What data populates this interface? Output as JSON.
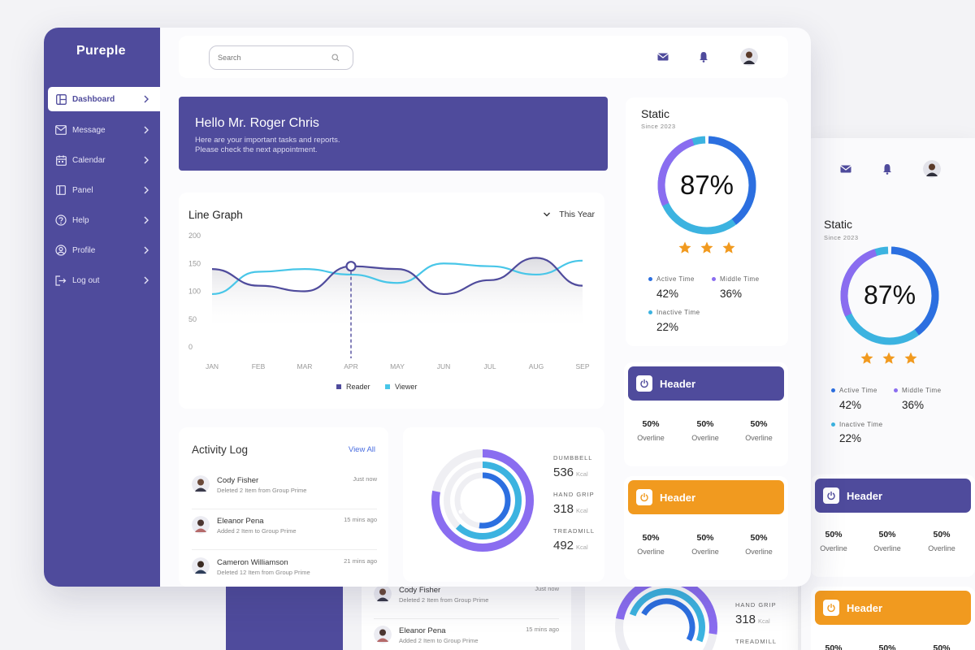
{
  "app": {
    "brand": "Pureple"
  },
  "sidebar": {
    "items": [
      {
        "label": "Dashboard",
        "icon": "dashboard-icon",
        "active": true
      },
      {
        "label": "Message",
        "icon": "mail-icon"
      },
      {
        "label": "Calendar",
        "icon": "calendar-icon"
      },
      {
        "label": "Panel",
        "icon": "panel-icon"
      },
      {
        "label": "Help",
        "icon": "help-icon"
      },
      {
        "label": "Profile",
        "icon": "profile-icon"
      },
      {
        "label": "Log out",
        "icon": "logout-icon"
      }
    ]
  },
  "search": {
    "placeholder": "Search"
  },
  "welcome": {
    "title": "Hello Mr. Roger Chris",
    "line1": "Here are your important tasks and reports.",
    "line2": "Please check the next appointment."
  },
  "chart_data": {
    "type": "line",
    "title": "Line Graph",
    "range_label": "This Year",
    "categories": [
      "JAN",
      "FEB",
      "MAR",
      "APR",
      "MAY",
      "JUN",
      "JUL",
      "AUG",
      "SEP"
    ],
    "yticks": [
      "200",
      "150",
      "100",
      "50",
      "0"
    ],
    "ylim": [
      0,
      200
    ],
    "highlight_index": 3,
    "series": [
      {
        "name": "Reader",
        "color": "#4f4b9c",
        "values": [
          140,
          110,
          100,
          145,
          140,
          95,
          120,
          160,
          110
        ]
      },
      {
        "name": "Viewer",
        "color": "#48c6e8",
        "values": [
          95,
          135,
          140,
          130,
          115,
          150,
          145,
          130,
          155
        ]
      }
    ]
  },
  "activity": {
    "title": "Activity Log",
    "view_all": "View All",
    "items": [
      {
        "name": "Cody Fisher",
        "desc": "Deleted 2 Item from Group Prime",
        "time": "Just now"
      },
      {
        "name": "Eleanor Pena",
        "desc": "Added 2 Item to Group Prime",
        "time": "15 mins ago"
      },
      {
        "name": "Cameron Williamson",
        "desc": "Deleted 12 Item from Group Prime",
        "time": "21 mins ago"
      }
    ]
  },
  "fitness": {
    "stats": [
      {
        "label": "DUMBBELL",
        "value": "536",
        "unit": "Kcal",
        "fraction": 0.78
      },
      {
        "label": "HAND GRIP",
        "value": "318",
        "unit": "Kcal",
        "fraction": 0.62
      },
      {
        "label": "TREADMILL",
        "value": "492",
        "unit": "Kcal",
        "fraction": 0.52
      }
    ],
    "colors": [
      "#8a6df0",
      "#3cb3e0",
      "#2c6fe0"
    ]
  },
  "static_card": {
    "title": "Static",
    "subtitle": "Since 2023",
    "percent": "87%",
    "stars": 3,
    "legend": [
      {
        "label": "Active Time",
        "value": "42%",
        "color": "#2c6fe0"
      },
      {
        "label": "Middle Time",
        "value": "36%",
        "color": "#8a6df0"
      },
      {
        "label": "Inactive Time",
        "value": "22%",
        "color": "#3cb3e0"
      }
    ]
  },
  "header_cards": [
    {
      "title": "Header",
      "color": "#4f4b9c",
      "metrics": [
        {
          "value": "50%",
          "label": "Overline"
        },
        {
          "value": "50%",
          "label": "Overline"
        },
        {
          "value": "50%",
          "label": "Overline"
        }
      ]
    },
    {
      "title": "Header",
      "color": "#f19a1f",
      "metrics": [
        {
          "value": "50%",
          "label": "Overline"
        },
        {
          "value": "50%",
          "label": "Overline"
        },
        {
          "value": "50%",
          "label": "Overline"
        }
      ]
    }
  ],
  "background_mock": {
    "hand_grip_label": "HAND GRIP",
    "hand_grip_value": "318",
    "hand_grip_unit": "Kcal",
    "treadmill_label": "TREADMILL",
    "log_items": [
      {
        "name": "Cody Fisher",
        "desc": "Deleted 2 Item from Group Prime",
        "time": "Just now"
      },
      {
        "name": "Eleanor Pena",
        "desc": "Added 2 Item to Group Prime",
        "time": "15 mins ago"
      }
    ]
  }
}
